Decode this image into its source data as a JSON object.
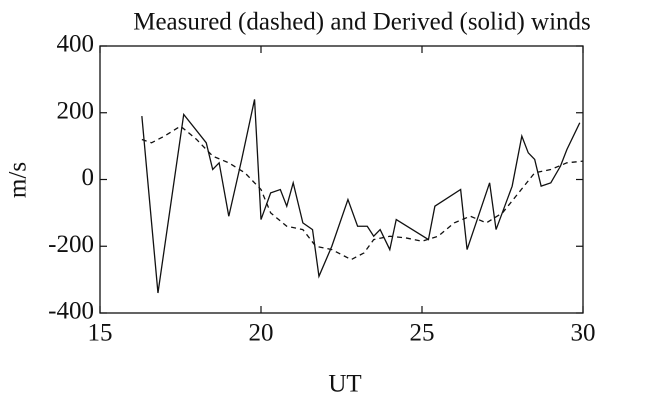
{
  "chart_data": {
    "type": "line",
    "title": "Measured (dashed) and Derived (solid) winds",
    "x_label": "UT",
    "y_label": "m/s",
    "xlim": [
      15,
      30
    ],
    "xticks": [
      15,
      20,
      25,
      30
    ],
    "ylim": [
      -400,
      400
    ],
    "yticks": [
      400,
      200,
      0,
      -200,
      -400
    ],
    "series": [
      {
        "name": "Derived",
        "color": "#111111",
        "dash": "solid",
        "x": [
          16.3,
          16.8,
          17.6,
          18.3,
          18.5,
          18.7,
          19.0,
          19.4,
          19.8,
          20.0,
          20.3,
          20.6,
          20.8,
          21.0,
          21.3,
          21.6,
          21.8,
          22.2,
          22.7,
          23.0,
          23.3,
          23.5,
          23.7,
          24.0,
          24.2,
          25.2,
          25.4,
          26.2,
          26.4,
          27.1,
          27.3,
          27.8,
          28.1,
          28.3,
          28.5,
          28.7,
          29.0,
          29.3,
          29.5,
          29.9
        ],
        "values": [
          190,
          -340,
          195,
          110,
          30,
          50,
          -110,
          60,
          240,
          -120,
          -40,
          -30,
          -80,
          -10,
          -130,
          -150,
          -290,
          -200,
          -60,
          -140,
          -140,
          -170,
          -150,
          -210,
          -120,
          -180,
          -80,
          -30,
          -210,
          -10,
          -150,
          -20,
          130,
          80,
          60,
          -20,
          -10,
          40,
          90,
          170
        ]
      },
      {
        "name": "Measured",
        "color": "#111111",
        "dash": "dashed",
        "x": [
          16.3,
          16.6,
          17.0,
          17.5,
          18.0,
          18.5,
          19.0,
          19.5,
          20.0,
          20.3,
          20.8,
          21.3,
          21.7,
          22.2,
          22.6,
          22.8,
          23.2,
          23.5,
          24.0,
          24.5,
          25.0,
          25.5,
          26.0,
          26.5,
          27.0,
          27.5,
          28.0,
          28.5,
          29.0,
          29.5,
          30.0
        ],
        "values": [
          120,
          110,
          130,
          160,
          120,
          70,
          50,
          20,
          -30,
          -100,
          -140,
          -150,
          -200,
          -210,
          -230,
          -240,
          -220,
          -180,
          -170,
          -175,
          -185,
          -170,
          -130,
          -110,
          -130,
          -100,
          -40,
          20,
          30,
          50,
          55
        ]
      }
    ]
  }
}
